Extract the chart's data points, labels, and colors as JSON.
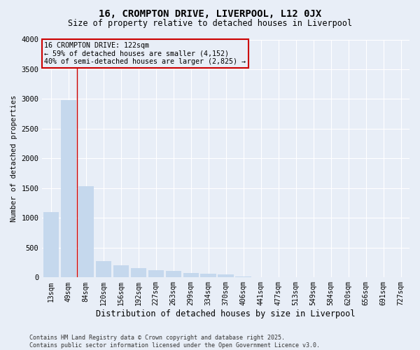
{
  "title1": "16, CROMPTON DRIVE, LIVERPOOL, L12 0JX",
  "title2": "Size of property relative to detached houses in Liverpool",
  "xlabel": "Distribution of detached houses by size in Liverpool",
  "ylabel": "Number of detached properties",
  "categories": [
    "13sqm",
    "49sqm",
    "84sqm",
    "120sqm",
    "156sqm",
    "192sqm",
    "227sqm",
    "263sqm",
    "299sqm",
    "334sqm",
    "370sqm",
    "406sqm",
    "441sqm",
    "477sqm",
    "513sqm",
    "549sqm",
    "584sqm",
    "620sqm",
    "656sqm",
    "691sqm",
    "727sqm"
  ],
  "values": [
    1100,
    2980,
    1530,
    270,
    200,
    160,
    120,
    110,
    80,
    60,
    50,
    10,
    0,
    0,
    0,
    0,
    0,
    0,
    0,
    0,
    0
  ],
  "bar_color": "#c5d8ed",
  "annotation_box_edgecolor": "#cc0000",
  "annotation_vline_color": "#cc0000",
  "vline_x_index": 2,
  "ylim": [
    0,
    4000
  ],
  "yticks": [
    0,
    500,
    1000,
    1500,
    2000,
    2500,
    3000,
    3500,
    4000
  ],
  "background_color": "#e8eef7",
  "grid_color": "#ffffff",
  "footer_line1": "Contains HM Land Registry data © Crown copyright and database right 2025.",
  "footer_line2": "Contains public sector information licensed under the Open Government Licence v3.0."
}
